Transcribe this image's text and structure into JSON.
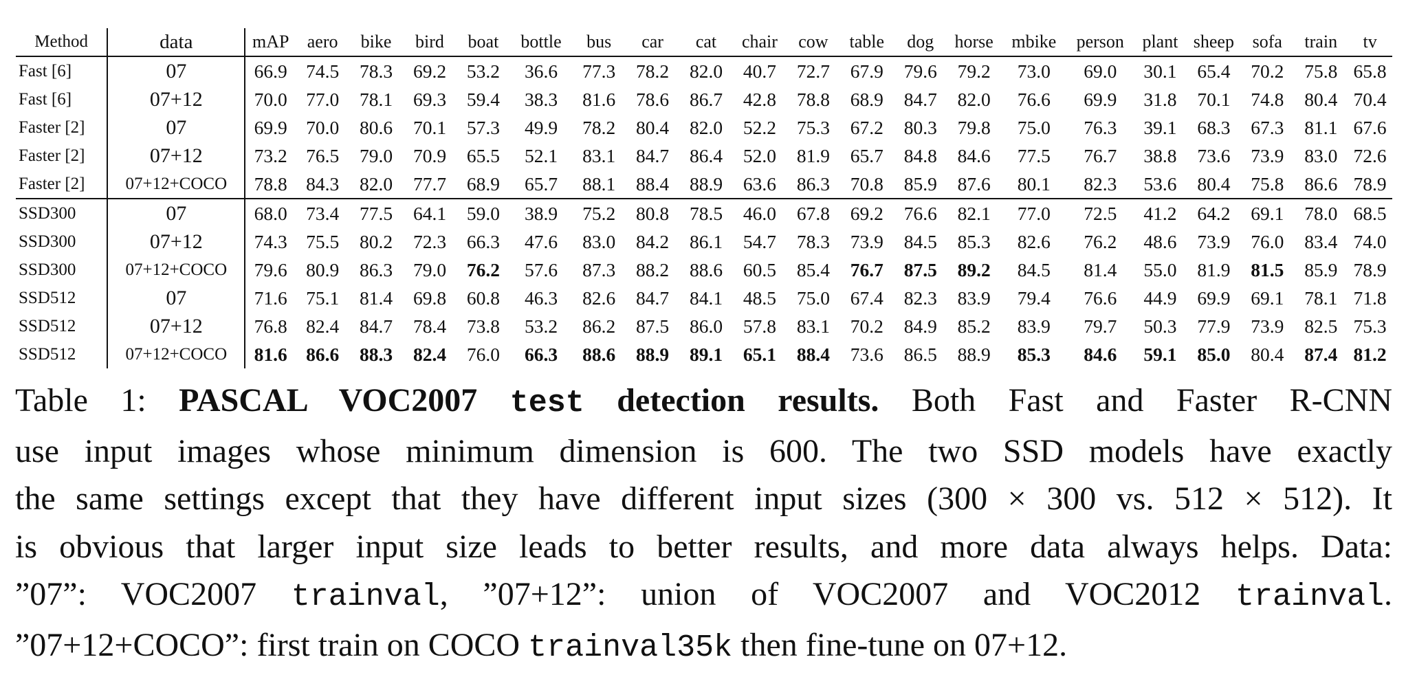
{
  "table": {
    "columns": [
      "Method",
      "data",
      "mAP",
      "aero",
      "bike",
      "bird",
      "boat",
      "bottle",
      "bus",
      "car",
      "cat",
      "chair",
      "cow",
      "table",
      "dog",
      "horse",
      "mbike",
      "person",
      "plant",
      "sheep",
      "sofa",
      "train",
      "tv"
    ],
    "rows": [
      {
        "method": "Fast [6]",
        "data": "07",
        "values": [
          "66.9",
          "74.5",
          "78.3",
          "69.2",
          "53.2",
          "36.6",
          "77.3",
          "78.2",
          "82.0",
          "40.7",
          "72.7",
          "67.9",
          "79.6",
          "79.2",
          "73.0",
          "69.0",
          "30.1",
          "65.4",
          "70.2",
          "75.8",
          "65.8"
        ],
        "bold": []
      },
      {
        "method": "Fast [6]",
        "data": "07+12",
        "values": [
          "70.0",
          "77.0",
          "78.1",
          "69.3",
          "59.4",
          "38.3",
          "81.6",
          "78.6",
          "86.7",
          "42.8",
          "78.8",
          "68.9",
          "84.7",
          "82.0",
          "76.6",
          "69.9",
          "31.8",
          "70.1",
          "74.8",
          "80.4",
          "70.4"
        ],
        "bold": []
      },
      {
        "method": "Faster [2]",
        "data": "07",
        "values": [
          "69.9",
          "70.0",
          "80.6",
          "70.1",
          "57.3",
          "49.9",
          "78.2",
          "80.4",
          "82.0",
          "52.2",
          "75.3",
          "67.2",
          "80.3",
          "79.8",
          "75.0",
          "76.3",
          "39.1",
          "68.3",
          "67.3",
          "81.1",
          "67.6"
        ],
        "bold": []
      },
      {
        "method": "Faster [2]",
        "data": "07+12",
        "values": [
          "73.2",
          "76.5",
          "79.0",
          "70.9",
          "65.5",
          "52.1",
          "83.1",
          "84.7",
          "86.4",
          "52.0",
          "81.9",
          "65.7",
          "84.8",
          "84.6",
          "77.5",
          "76.7",
          "38.8",
          "73.6",
          "73.9",
          "83.0",
          "72.6"
        ],
        "bold": []
      },
      {
        "method": "Faster [2]",
        "data": "07+12+COCO",
        "values": [
          "78.8",
          "84.3",
          "82.0",
          "77.7",
          "68.9",
          "65.7",
          "88.1",
          "88.4",
          "88.9",
          "63.6",
          "86.3",
          "70.8",
          "85.9",
          "87.6",
          "80.1",
          "82.3",
          "53.6",
          "80.4",
          "75.8",
          "86.6",
          "78.9"
        ],
        "bold": []
      },
      {
        "method": "SSD300",
        "data": "07",
        "values": [
          "68.0",
          "73.4",
          "77.5",
          "64.1",
          "59.0",
          "38.9",
          "75.2",
          "80.8",
          "78.5",
          "46.0",
          "67.8",
          "69.2",
          "76.6",
          "82.1",
          "77.0",
          "72.5",
          "41.2",
          "64.2",
          "69.1",
          "78.0",
          "68.5"
        ],
        "bold": []
      },
      {
        "method": "SSD300",
        "data": "07+12",
        "values": [
          "74.3",
          "75.5",
          "80.2",
          "72.3",
          "66.3",
          "47.6",
          "83.0",
          "84.2",
          "86.1",
          "54.7",
          "78.3",
          "73.9",
          "84.5",
          "85.3",
          "82.6",
          "76.2",
          "48.6",
          "73.9",
          "76.0",
          "83.4",
          "74.0"
        ],
        "bold": []
      },
      {
        "method": "SSD300",
        "data": "07+12+COCO",
        "values": [
          "79.6",
          "80.9",
          "86.3",
          "79.0",
          "76.2",
          "57.6",
          "87.3",
          "88.2",
          "88.6",
          "60.5",
          "85.4",
          "76.7",
          "87.5",
          "89.2",
          "84.5",
          "81.4",
          "55.0",
          "81.9",
          "81.5",
          "85.9",
          "78.9"
        ],
        "bold": [
          4,
          11,
          12,
          13,
          18
        ]
      },
      {
        "method": "SSD512",
        "data": "07",
        "values": [
          "71.6",
          "75.1",
          "81.4",
          "69.8",
          "60.8",
          "46.3",
          "82.6",
          "84.7",
          "84.1",
          "48.5",
          "75.0",
          "67.4",
          "82.3",
          "83.9",
          "79.4",
          "76.6",
          "44.9",
          "69.9",
          "69.1",
          "78.1",
          "71.8"
        ],
        "bold": []
      },
      {
        "method": "SSD512",
        "data": "07+12",
        "values": [
          "76.8",
          "82.4",
          "84.7",
          "78.4",
          "73.8",
          "53.2",
          "86.2",
          "87.5",
          "86.0",
          "57.8",
          "83.1",
          "70.2",
          "84.9",
          "85.2",
          "83.9",
          "79.7",
          "50.3",
          "77.9",
          "73.9",
          "82.5",
          "75.3"
        ],
        "bold": []
      },
      {
        "method": "SSD512",
        "data": "07+12+COCO",
        "values": [
          "81.6",
          "86.6",
          "88.3",
          "82.4",
          "76.0",
          "66.3",
          "88.6",
          "88.9",
          "89.1",
          "65.1",
          "88.4",
          "73.6",
          "86.5",
          "88.9",
          "85.3",
          "84.6",
          "59.1",
          "85.0",
          "80.4",
          "87.4",
          "81.2"
        ],
        "bold": [
          0,
          1,
          2,
          3,
          5,
          6,
          7,
          8,
          9,
          10,
          14,
          15,
          16,
          17,
          19,
          20
        ]
      }
    ]
  },
  "caption": {
    "label": "Table 1: ",
    "title_a": "PASCAL VOC2007 ",
    "title_mono": "test",
    "title_b": " detection results.",
    "line1_rest": " Both Fast and Faster R-CNN",
    "line2": "use input images whose minimum dimension is 600. The two SSD models have exactly",
    "line3": "the same settings except that they have different input sizes (300 × 300 vs. 512 × 512). It",
    "line4": "is obvious that larger input size leads to better results, and more data always helps. Data:",
    "line5_a": "”07”: VOC2007 ",
    "line5_mono1": "trainval",
    "line5_b": ", ”07+12”: union of VOC2007 and VOC2012 ",
    "line5_mono2": "trainval",
    "line5_c": ".",
    "line6_a": "”07+12+COCO”: first train on COCO ",
    "line6_mono": "trainval35k",
    "line6_b": " then fine-tune on 07+12."
  }
}
